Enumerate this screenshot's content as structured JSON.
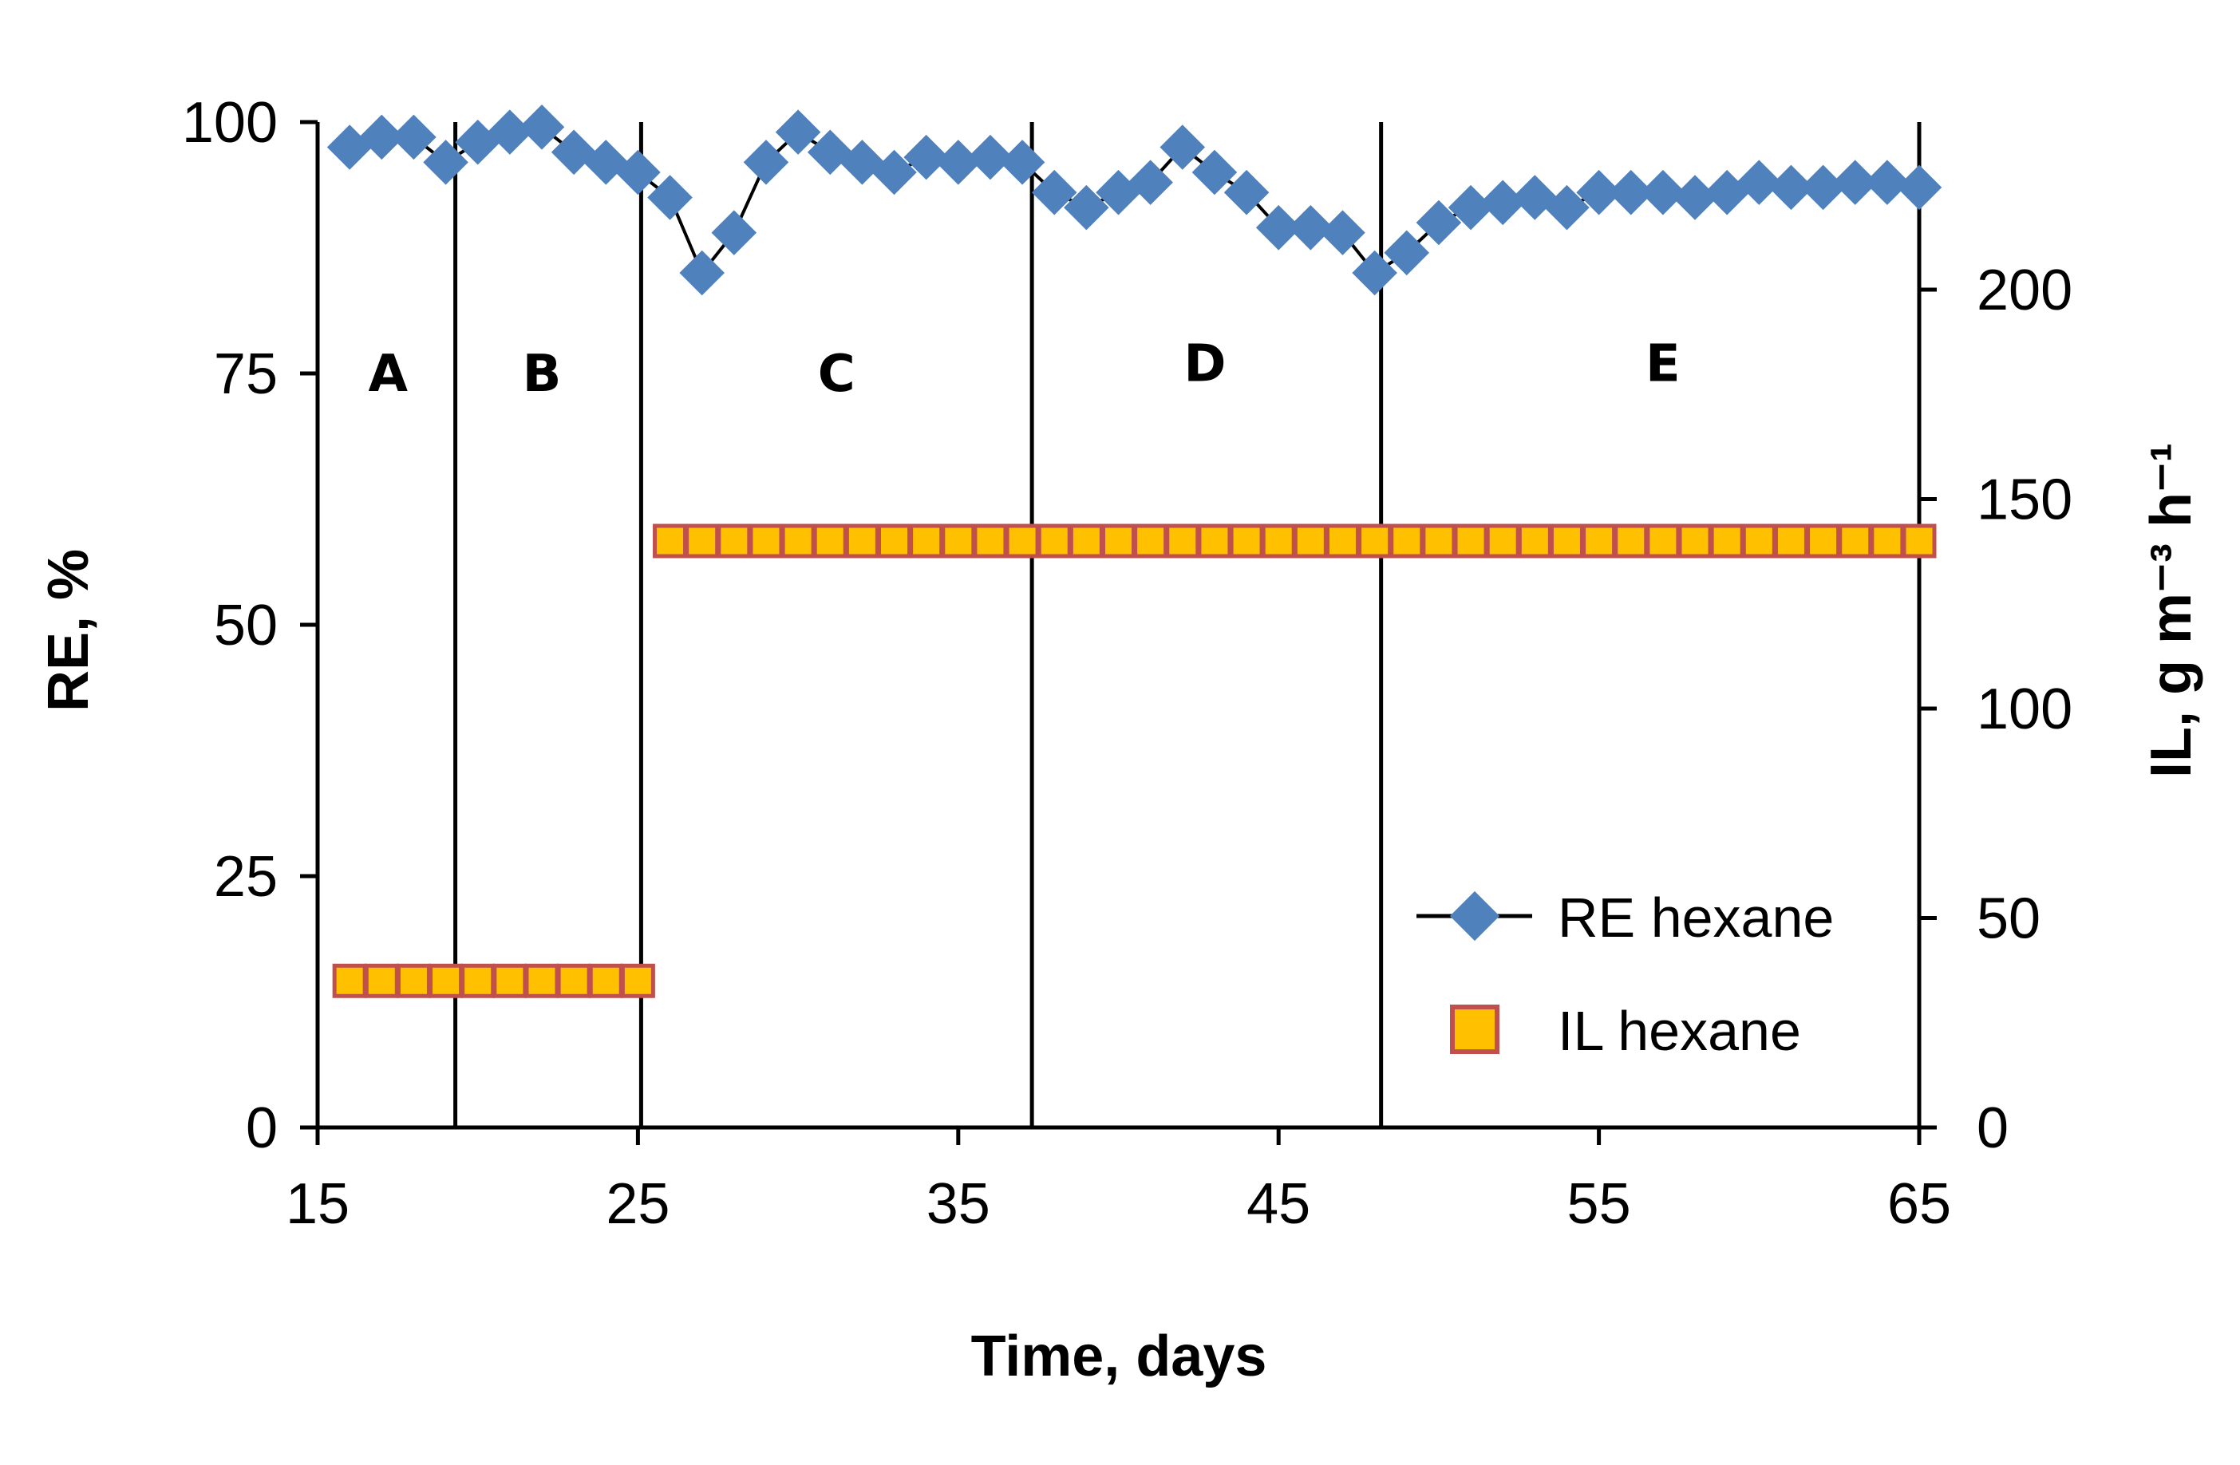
{
  "chart_data": {
    "type": "line",
    "title": "",
    "xlabel": "Time, days",
    "ylabel": "RE, %",
    "y2label": "IL, g m⁻³ h⁻¹",
    "xlim": [
      15,
      65
    ],
    "ylim": [
      0,
      100
    ],
    "y2lim": [
      0,
      240
    ],
    "x_ticks": [
      "15",
      "25",
      "35",
      "45",
      "55",
      "65"
    ],
    "y_ticks": [
      "0",
      "25",
      "50",
      "75",
      "100"
    ],
    "y2_ticks": [
      "0",
      "50",
      "100",
      "150",
      "200"
    ],
    "phase_boundaries": [
      19.3,
      25.1,
      37.3,
      48.2
    ],
    "phases": [
      {
        "label": "A",
        "x": 17.2,
        "y": 75
      },
      {
        "label": "B",
        "x": 22.0,
        "y": 75
      },
      {
        "label": "C",
        "x": 31.2,
        "y": 75
      },
      {
        "label": "D",
        "x": 42.7,
        "y": 76
      },
      {
        "label": "E",
        "x": 57.0,
        "y": 76
      }
    ],
    "series": [
      {
        "name": "RE hexane",
        "axis": "left",
        "color": "#4f81bd",
        "marker": "diamond",
        "x": [
          16,
          17,
          18,
          19,
          20,
          21,
          22,
          23,
          24,
          25,
          26,
          27,
          28,
          29,
          30,
          31,
          32,
          33,
          34,
          35,
          36,
          37,
          38,
          39,
          40,
          41,
          42,
          43,
          44,
          45,
          46,
          47,
          48,
          49,
          50,
          51,
          52,
          53,
          54,
          55,
          56,
          57,
          58,
          59,
          60,
          61,
          62,
          63,
          64,
          65
        ],
        "values": [
          97.5,
          98.5,
          98.5,
          96,
          98,
          99,
          99.5,
          97,
          96,
          95,
          92.5,
          85,
          89,
          96,
          99,
          97,
          96,
          95,
          96.5,
          96,
          96.5,
          96,
          93,
          91.5,
          93,
          94,
          97.5,
          95,
          93,
          89.5,
          89.5,
          89,
          85,
          87,
          90,
          91.5,
          92,
          92.5,
          91.5,
          93,
          93,
          93,
          92.5,
          93,
          94,
          93.5,
          93.5,
          94,
          94,
          93.5
        ]
      },
      {
        "name": "IL hexane",
        "axis": "right",
        "color": "#ffc000",
        "edge_color": "#c0504d",
        "marker": "square",
        "x": [
          16,
          17,
          18,
          19,
          20,
          21,
          22,
          23,
          24,
          25,
          26,
          27,
          28,
          29,
          30,
          31,
          32,
          33,
          34,
          35,
          36,
          37,
          38,
          39,
          40,
          41,
          42,
          43,
          44,
          45,
          46,
          47,
          48,
          49,
          50,
          51,
          52,
          53,
          54,
          55,
          56,
          57,
          58,
          59,
          60,
          61,
          62,
          63,
          64,
          65
        ],
        "values": [
          35,
          35,
          35,
          35,
          35,
          35,
          35,
          35,
          35,
          35,
          140,
          140,
          140,
          140,
          140,
          140,
          140,
          140,
          140,
          140,
          140,
          140,
          140,
          140,
          140,
          140,
          140,
          140,
          140,
          140,
          140,
          140,
          140,
          140,
          140,
          140,
          140,
          140,
          140,
          140,
          140,
          140,
          140,
          140,
          140,
          140,
          140,
          140,
          140,
          140
        ]
      }
    ],
    "legend": {
      "position": "bottom-right",
      "entries": [
        "RE hexane",
        "IL hexane"
      ]
    }
  }
}
